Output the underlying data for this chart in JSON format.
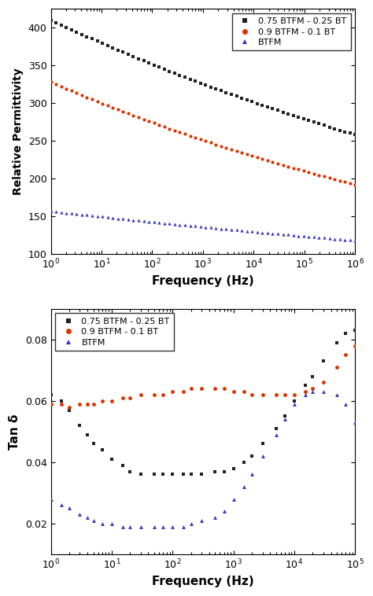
{
  "top_plot": {
    "xlabel": "Frequency (Hz)",
    "ylabel": "Relative Permittivity",
    "xlim": [
      1,
      1000000.0
    ],
    "ylim": [
      100,
      425
    ],
    "yticks": [
      100,
      150,
      200,
      250,
      300,
      350,
      400
    ],
    "n_points": 60,
    "series": [
      {
        "label": "0.75 BTFM - 0.25 BT",
        "color": "#222222",
        "marker": "s",
        "start": 410,
        "end": 258
      },
      {
        "label": "0.9 BTFM - 0.1 BT",
        "color": "#dd3300",
        "marker": "o",
        "start": 328,
        "end": 192
      },
      {
        "label": "BTFM",
        "color": "#3333bb",
        "marker": "^",
        "start": 157,
        "end": 118
      }
    ]
  },
  "bottom_plot": {
    "xlabel": "Frequency (Hz)",
    "ylabel": "Tan δ",
    "xlim": [
      1,
      100000.0
    ],
    "ylim": [
      0.01,
      0.09
    ],
    "yticks": [
      0.02,
      0.04,
      0.06,
      0.08
    ],
    "series": [
      {
        "label": "0.75 BTFM - 0.25 BT",
        "color": "#222222",
        "marker": "s",
        "data_x": [
          1.0,
          1.5,
          2.0,
          3.0,
          4.0,
          5.0,
          7.0,
          10.0,
          15.0,
          20.0,
          30.0,
          50.0,
          70.0,
          100.0,
          150.0,
          200.0,
          300.0,
          500.0,
          700.0,
          1000.0,
          1500.0,
          2000.0,
          3000.0,
          5000.0,
          7000.0,
          10000.0,
          15000.0,
          20000.0,
          30000.0,
          50000.0,
          70000.0,
          100000.0
        ],
        "data_y": [
          0.062,
          0.06,
          0.057,
          0.052,
          0.049,
          0.046,
          0.044,
          0.041,
          0.039,
          0.037,
          0.036,
          0.036,
          0.036,
          0.036,
          0.036,
          0.036,
          0.036,
          0.037,
          0.037,
          0.038,
          0.04,
          0.042,
          0.046,
          0.051,
          0.055,
          0.06,
          0.065,
          0.068,
          0.073,
          0.079,
          0.082,
          0.083
        ]
      },
      {
        "label": "0.9 BTFM - 0.1 BT",
        "color": "#dd3300",
        "marker": "o",
        "data_x": [
          1.0,
          1.5,
          2.0,
          3.0,
          4.0,
          5.0,
          7.0,
          10.0,
          15.0,
          20.0,
          30.0,
          50.0,
          70.0,
          100.0,
          150.0,
          200.0,
          300.0,
          500.0,
          700.0,
          1000.0,
          1500.0,
          2000.0,
          3000.0,
          5000.0,
          7000.0,
          10000.0,
          15000.0,
          20000.0,
          30000.0,
          50000.0,
          70000.0,
          100000.0
        ],
        "data_y": [
          0.059,
          0.059,
          0.058,
          0.059,
          0.059,
          0.059,
          0.06,
          0.06,
          0.061,
          0.061,
          0.062,
          0.062,
          0.062,
          0.063,
          0.063,
          0.064,
          0.064,
          0.064,
          0.064,
          0.063,
          0.063,
          0.062,
          0.062,
          0.062,
          0.062,
          0.062,
          0.063,
          0.064,
          0.066,
          0.071,
          0.075,
          0.078
        ]
      },
      {
        "label": "BTFM",
        "color": "#3333bb",
        "marker": "^",
        "data_x": [
          1.0,
          1.5,
          2.0,
          3.0,
          4.0,
          5.0,
          7.0,
          10.0,
          15.0,
          20.0,
          30.0,
          50.0,
          70.0,
          100.0,
          150.0,
          200.0,
          300.0,
          500.0,
          700.0,
          1000.0,
          1500.0,
          2000.0,
          3000.0,
          5000.0,
          7000.0,
          10000.0,
          15000.0,
          20000.0,
          30000.0,
          50000.0,
          70000.0,
          100000.0
        ],
        "data_y": [
          0.028,
          0.026,
          0.025,
          0.023,
          0.022,
          0.021,
          0.02,
          0.02,
          0.019,
          0.019,
          0.019,
          0.019,
          0.019,
          0.019,
          0.019,
          0.02,
          0.021,
          0.022,
          0.024,
          0.028,
          0.032,
          0.036,
          0.042,
          0.049,
          0.054,
          0.059,
          0.062,
          0.063,
          0.063,
          0.062,
          0.059,
          0.053
        ]
      }
    ]
  },
  "legend": {
    "labels": [
      "0.75 BTFM - 0.25 BT",
      "0.9 BTFM - 0.1 BT",
      "BTFM"
    ],
    "colors": [
      "#222222",
      "#dd3300",
      "#3333bb"
    ],
    "markers": [
      "s",
      "o",
      "^"
    ]
  },
  "background_color": "#ffffff",
  "marker_size": 3.5,
  "top_marker_size": 3.0
}
